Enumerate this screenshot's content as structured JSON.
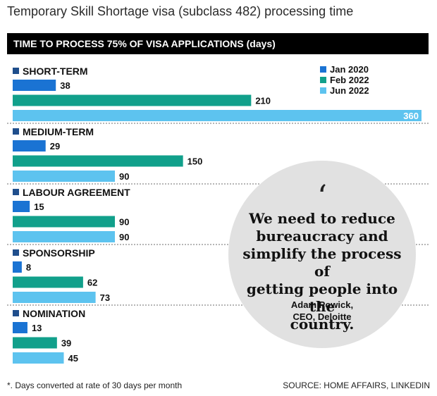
{
  "header": {
    "title": "Temporary Skill Shortage visa (subclass 482) processing time",
    "banner": "TIME TO PROCESS 75% OF VISA APPLICATIONS (days)"
  },
  "chart_data": {
    "type": "bar",
    "orientation": "horizontal",
    "title": "TIME TO PROCESS 75% OF VISA APPLICATIONS (days)",
    "categories": [
      "SHORT-TERM",
      "MEDIUM-TERM",
      "LABOUR AGREEMENT",
      "SPONSORSHIP",
      "NOMINATION"
    ],
    "series": [
      {
        "name": "Jan 2020",
        "color": "#1a73d3",
        "values": [
          38,
          29,
          15,
          8,
          13
        ]
      },
      {
        "name": "Feb 2022",
        "color": "#11a08b",
        "values": [
          210,
          150,
          90,
          62,
          39
        ]
      },
      {
        "name": "Jun 2022",
        "color": "#5dc3ef",
        "values": [
          360,
          90,
          90,
          73,
          45
        ]
      }
    ],
    "xlim": [
      0,
      360
    ],
    "legend_position": "top-right",
    "value_labels": true,
    "grid": false
  },
  "quote": {
    "mark": "‘",
    "lines": [
      "We need to reduce",
      "bureaucracy and",
      "simplify the process of",
      "getting people into the",
      "country."
    ],
    "author_name": "Adam Powick,",
    "author_title": "CEO, Deloitte"
  },
  "footer": {
    "footnote": "*. Days converted at rate of 30 days per month",
    "source": "SOURCE: HOME AFFAIRS, LINKEDIN"
  },
  "colors": {
    "category_square": "#1f4e8c",
    "divider": "#6e6e6e",
    "quote_bg": "#e1e1e1"
  }
}
